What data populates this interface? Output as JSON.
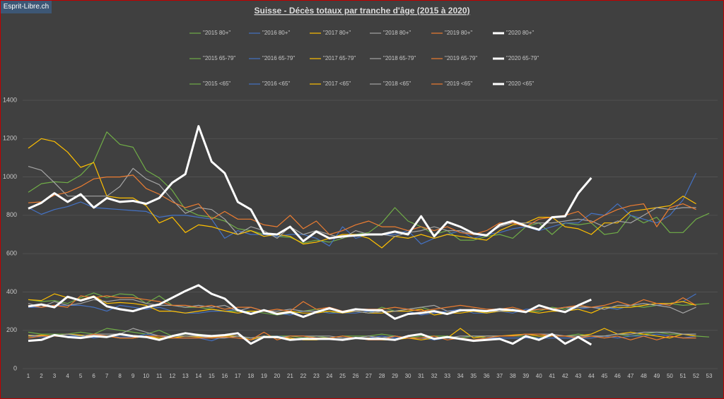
{
  "badge": "Esprit-Libre.ch",
  "chart_data": {
    "type": "line",
    "title": "Suisse - Décès totaux par tranche d'âge (2015  à 2020)",
    "categories": [
      1,
      2,
      3,
      4,
      5,
      6,
      7,
      8,
      9,
      10,
      11,
      12,
      13,
      14,
      15,
      16,
      17,
      18,
      19,
      20,
      21,
      22,
      23,
      24,
      25,
      26,
      27,
      28,
      29,
      30,
      31,
      32,
      33,
      34,
      35,
      36,
      37,
      38,
      39,
      40,
      41,
      42,
      43,
      44,
      45,
      46,
      47,
      48,
      49,
      50,
      51,
      52,
      53
    ],
    "ylim": [
      0,
      1400
    ],
    "yticks": [
      0,
      200,
      400,
      600,
      800,
      1000,
      1200,
      1400
    ],
    "grid": true,
    "series": [
      {
        "name": "\"2015 80+\"",
        "color": "#70ad47",
        "width": 1.2,
        "values": [
          920,
          965,
          975,
          970,
          1010,
          1080,
          1235,
          1170,
          1155,
          1035,
          995,
          930,
          830,
          800,
          790,
          770,
          730,
          720,
          700,
          690,
          685,
          655,
          670,
          660,
          680,
          700,
          710,
          760,
          840,
          770,
          740,
          700,
          720,
          670,
          670,
          690,
          700,
          680,
          740,
          760,
          700,
          760,
          750,
          760,
          700,
          710,
          800,
          760,
          790,
          710,
          710,
          780,
          810
        ]
      },
      {
        "name": "\"2016 80+\"",
        "color": "#4472c4",
        "width": 1.2,
        "values": [
          840,
          805,
          830,
          845,
          870,
          840,
          835,
          830,
          825,
          820,
          790,
          800,
          800,
          790,
          780,
          680,
          720,
          700,
          700,
          690,
          700,
          700,
          680,
          640,
          740,
          680,
          700,
          700,
          700,
          720,
          650,
          680,
          700,
          720,
          680,
          700,
          710,
          730,
          740,
          720,
          740,
          760,
          760,
          810,
          800,
          860,
          800,
          780,
          760,
          800,
          880,
          1020,
          null
        ]
      },
      {
        "name": "\"2017 80+\"",
        "color": "#ffc000",
        "width": 1.2,
        "values": [
          1150,
          1200,
          1185,
          1130,
          1050,
          1075,
          900,
          890,
          890,
          850,
          760,
          790,
          710,
          750,
          740,
          720,
          700,
          720,
          690,
          700,
          690,
          650,
          660,
          680,
          700,
          700,
          680,
          630,
          690,
          680,
          700,
          680,
          700,
          690,
          680,
          670,
          720,
          750,
          760,
          790,
          790,
          740,
          730,
          700,
          760,
          760,
          820,
          830,
          840,
          850,
          900,
          860,
          null
        ]
      },
      {
        "name": "\"2018 80+\"",
        "color": "#a5a5a5",
        "width": 1.2,
        "values": [
          1055,
          1035,
          970,
          900,
          900,
          900,
          900,
          950,
          1045,
          990,
          960,
          880,
          810,
          840,
          830,
          780,
          700,
          740,
          720,
          680,
          740,
          700,
          720,
          700,
          680,
          720,
          700,
          700,
          690,
          710,
          720,
          740,
          720,
          720,
          700,
          700,
          740,
          760,
          760,
          760,
          760,
          770,
          780,
          770,
          740,
          770,
          760,
          800,
          840,
          830,
          840,
          840,
          null
        ]
      },
      {
        "name": "\"2019 80+\"",
        "color": "#ed7d31",
        "width": 1.2,
        "values": [
          865,
          870,
          905,
          920,
          950,
          990,
          1000,
          1000,
          1010,
          940,
          910,
          870,
          840,
          860,
          780,
          820,
          780,
          780,
          750,
          740,
          800,
          730,
          770,
          700,
          720,
          750,
          770,
          740,
          740,
          720,
          740,
          720,
          740,
          710,
          700,
          720,
          760,
          760,
          740,
          780,
          790,
          800,
          820,
          760,
          800,
          830,
          850,
          860,
          740,
          840,
          860,
          830,
          null
        ]
      },
      {
        "name": "\"2020 80+\"",
        "color": "#ffffff",
        "width": 3,
        "values": [
          835,
          865,
          915,
          870,
          910,
          840,
          890,
          870,
          875,
          860,
          890,
          970,
          1015,
          1265,
          1080,
          1020,
          870,
          830,
          705,
          700,
          740,
          665,
          715,
          680,
          690,
          695,
          700,
          700,
          715,
          700,
          795,
          690,
          765,
          740,
          705,
          695,
          750,
          770,
          745,
          725,
          790,
          795,
          915,
          995,
          null,
          null,
          null,
          null,
          null,
          null,
          null,
          null,
          null
        ]
      },
      {
        "name": "\"2015 65-79\"",
        "color": "#70ad47",
        "width": 1.2,
        "values": [
          360,
          350,
          355,
          340,
          370,
          395,
          370,
          390,
          385,
          340,
          380,
          330,
          320,
          320,
          310,
          300,
          300,
          300,
          290,
          280,
          290,
          300,
          310,
          290,
          300,
          300,
          290,
          320,
          300,
          310,
          320,
          300,
          290,
          300,
          310,
          290,
          300,
          310,
          300,
          300,
          320,
          310,
          330,
          320,
          320,
          310,
          330,
          320,
          330,
          340,
          330,
          335,
          340
        ]
      },
      {
        "name": "\"2016 65-79\"",
        "color": "#4472c4",
        "width": 1.2,
        "values": [
          320,
          320,
          330,
          330,
          330,
          320,
          300,
          330,
          320,
          310,
          320,
          300,
          290,
          290,
          300,
          300,
          310,
          290,
          300,
          290,
          280,
          300,
          300,
          290,
          290,
          290,
          300,
          290,
          300,
          300,
          280,
          290,
          300,
          310,
          290,
          290,
          300,
          290,
          310,
          310,
          310,
          320,
          310,
          320,
          320,
          310,
          330,
          340,
          330,
          340,
          350,
          390,
          null
        ]
      },
      {
        "name": "\"2017 65-79\"",
        "color": "#ffc000",
        "width": 1.2,
        "values": [
          360,
          355,
          390,
          370,
          360,
          380,
          340,
          345,
          340,
          330,
          300,
          300,
          290,
          300,
          310,
          300,
          290,
          300,
          300,
          290,
          300,
          290,
          290,
          300,
          290,
          300,
          290,
          290,
          300,
          300,
          310,
          280,
          290,
          290,
          300,
          290,
          300,
          300,
          300,
          290,
          300,
          300,
          310,
          290,
          320,
          320,
          320,
          330,
          340,
          340,
          350,
          330,
          null
        ]
      },
      {
        "name": "\"2018 65-79\"",
        "color": "#a5a5a5",
        "width": 1.2,
        "values": [
          340,
          320,
          350,
          330,
          340,
          360,
          350,
          360,
          360,
          340,
          330,
          330,
          320,
          330,
          320,
          330,
          300,
          320,
          300,
          300,
          310,
          300,
          300,
          310,
          300,
          300,
          290,
          300,
          300,
          310,
          320,
          330,
          300,
          300,
          310,
          300,
          300,
          310,
          300,
          310,
          310,
          320,
          320,
          320,
          310,
          330,
          330,
          340,
          330,
          320,
          290,
          320,
          null
        ]
      },
      {
        "name": "\"2019 65-79\"",
        "color": "#ed7d31",
        "width": 1.2,
        "values": [
          330,
          320,
          330,
          320,
          380,
          370,
          380,
          370,
          370,
          360,
          350,
          330,
          330,
          320,
          330,
          310,
          320,
          320,
          300,
          310,
          300,
          350,
          310,
          320,
          300,
          310,
          310,
          310,
          320,
          310,
          300,
          310,
          320,
          330,
          320,
          310,
          310,
          320,
          300,
          310,
          310,
          320,
          330,
          320,
          330,
          350,
          330,
          360,
          340,
          330,
          370,
          330,
          null
        ]
      },
      {
        "name": "\"2020 65-79\"",
        "color": "#ffffff",
        "width": 3,
        "values": [
          325,
          335,
          320,
          375,
          355,
          375,
          325,
          310,
          300,
          320,
          335,
          370,
          405,
          435,
          390,
          365,
          305,
          285,
          305,
          285,
          295,
          270,
          295,
          315,
          295,
          310,
          305,
          305,
          260,
          285,
          290,
          300,
          285,
          305,
          305,
          300,
          310,
          305,
          295,
          330,
          310,
          295,
          330,
          360,
          null,
          null,
          null,
          null,
          null,
          null,
          null,
          null,
          null
        ]
      },
      {
        "name": "\"2015 <65\"",
        "color": "#70ad47",
        "width": 1.2,
        "values": [
          190,
          180,
          180,
          180,
          190,
          180,
          210,
          200,
          190,
          180,
          200,
          170,
          180,
          180,
          170,
          170,
          170,
          160,
          170,
          170,
          170,
          160,
          170,
          160,
          170,
          170,
          170,
          180,
          170,
          160,
          170,
          170,
          170,
          160,
          170,
          160,
          170,
          170,
          170,
          160,
          170,
          170,
          180,
          170,
          170,
          180,
          170,
          180,
          190,
          180,
          180,
          170,
          165
        ]
      },
      {
        "name": "\"2016 <65\"",
        "color": "#4472c4",
        "width": 1.2,
        "values": [
          170,
          165,
          170,
          170,
          170,
          160,
          170,
          165,
          165,
          180,
          170,
          160,
          160,
          160,
          145,
          170,
          170,
          150,
          165,
          170,
          160,
          150,
          160,
          160,
          150,
          160,
          160,
          170,
          160,
          160,
          160,
          150,
          160,
          160,
          150,
          160,
          160,
          160,
          160,
          160,
          160,
          160,
          160,
          160,
          170,
          160,
          170,
          170,
          180,
          170,
          160,
          170,
          null
        ]
      },
      {
        "name": "\"2017 <65\"",
        "color": "#ffc000",
        "width": 1.2,
        "values": [
          170,
          175,
          170,
          180,
          175,
          170,
          170,
          160,
          160,
          170,
          160,
          160,
          170,
          165,
          165,
          170,
          170,
          150,
          170,
          160,
          160,
          150,
          150,
          160,
          150,
          160,
          160,
          150,
          150,
          160,
          150,
          160,
          160,
          210,
          160,
          170,
          170,
          175,
          180,
          170,
          170,
          170,
          170,
          180,
          210,
          180,
          190,
          180,
          170,
          160,
          180,
          170,
          null
        ]
      },
      {
        "name": "\"2018 <65\"",
        "color": "#a5a5a5",
        "width": 1.2,
        "values": [
          175,
          170,
          170,
          180,
          170,
          180,
          180,
          180,
          210,
          190,
          170,
          170,
          170,
          170,
          160,
          160,
          170,
          160,
          170,
          160,
          170,
          170,
          170,
          170,
          160,
          160,
          170,
          160,
          170,
          160,
          160,
          160,
          160,
          170,
          170,
          170,
          170,
          170,
          180,
          180,
          180,
          170,
          170,
          170,
          170,
          180,
          180,
          190,
          190,
          190,
          180,
          180,
          null
        ]
      },
      {
        "name": "\"2019 <65\"",
        "color": "#ed7d31",
        "width": 1.2,
        "values": [
          160,
          170,
          170,
          165,
          160,
          180,
          170,
          160,
          160,
          170,
          170,
          160,
          160,
          160,
          160,
          165,
          160,
          150,
          190,
          150,
          170,
          170,
          160,
          160,
          170,
          160,
          150,
          150,
          170,
          160,
          160,
          170,
          150,
          160,
          150,
          160,
          170,
          170,
          180,
          180,
          170,
          170,
          160,
          170,
          160,
          170,
          150,
          170,
          150,
          170,
          160,
          160,
          null
        ]
      },
      {
        "name": "\"2020 <65\"",
        "color": "#ffffff",
        "width": 3,
        "values": [
          145,
          150,
          175,
          165,
          160,
          170,
          165,
          180,
          170,
          165,
          150,
          170,
          185,
          175,
          170,
          175,
          185,
          130,
          165,
          165,
          150,
          155,
          155,
          155,
          150,
          160,
          155,
          155,
          150,
          170,
          180,
          155,
          165,
          155,
          145,
          150,
          155,
          130,
          170,
          150,
          180,
          130,
          165,
          125,
          null,
          null,
          null,
          null,
          null,
          null,
          null,
          null,
          null
        ]
      }
    ]
  }
}
